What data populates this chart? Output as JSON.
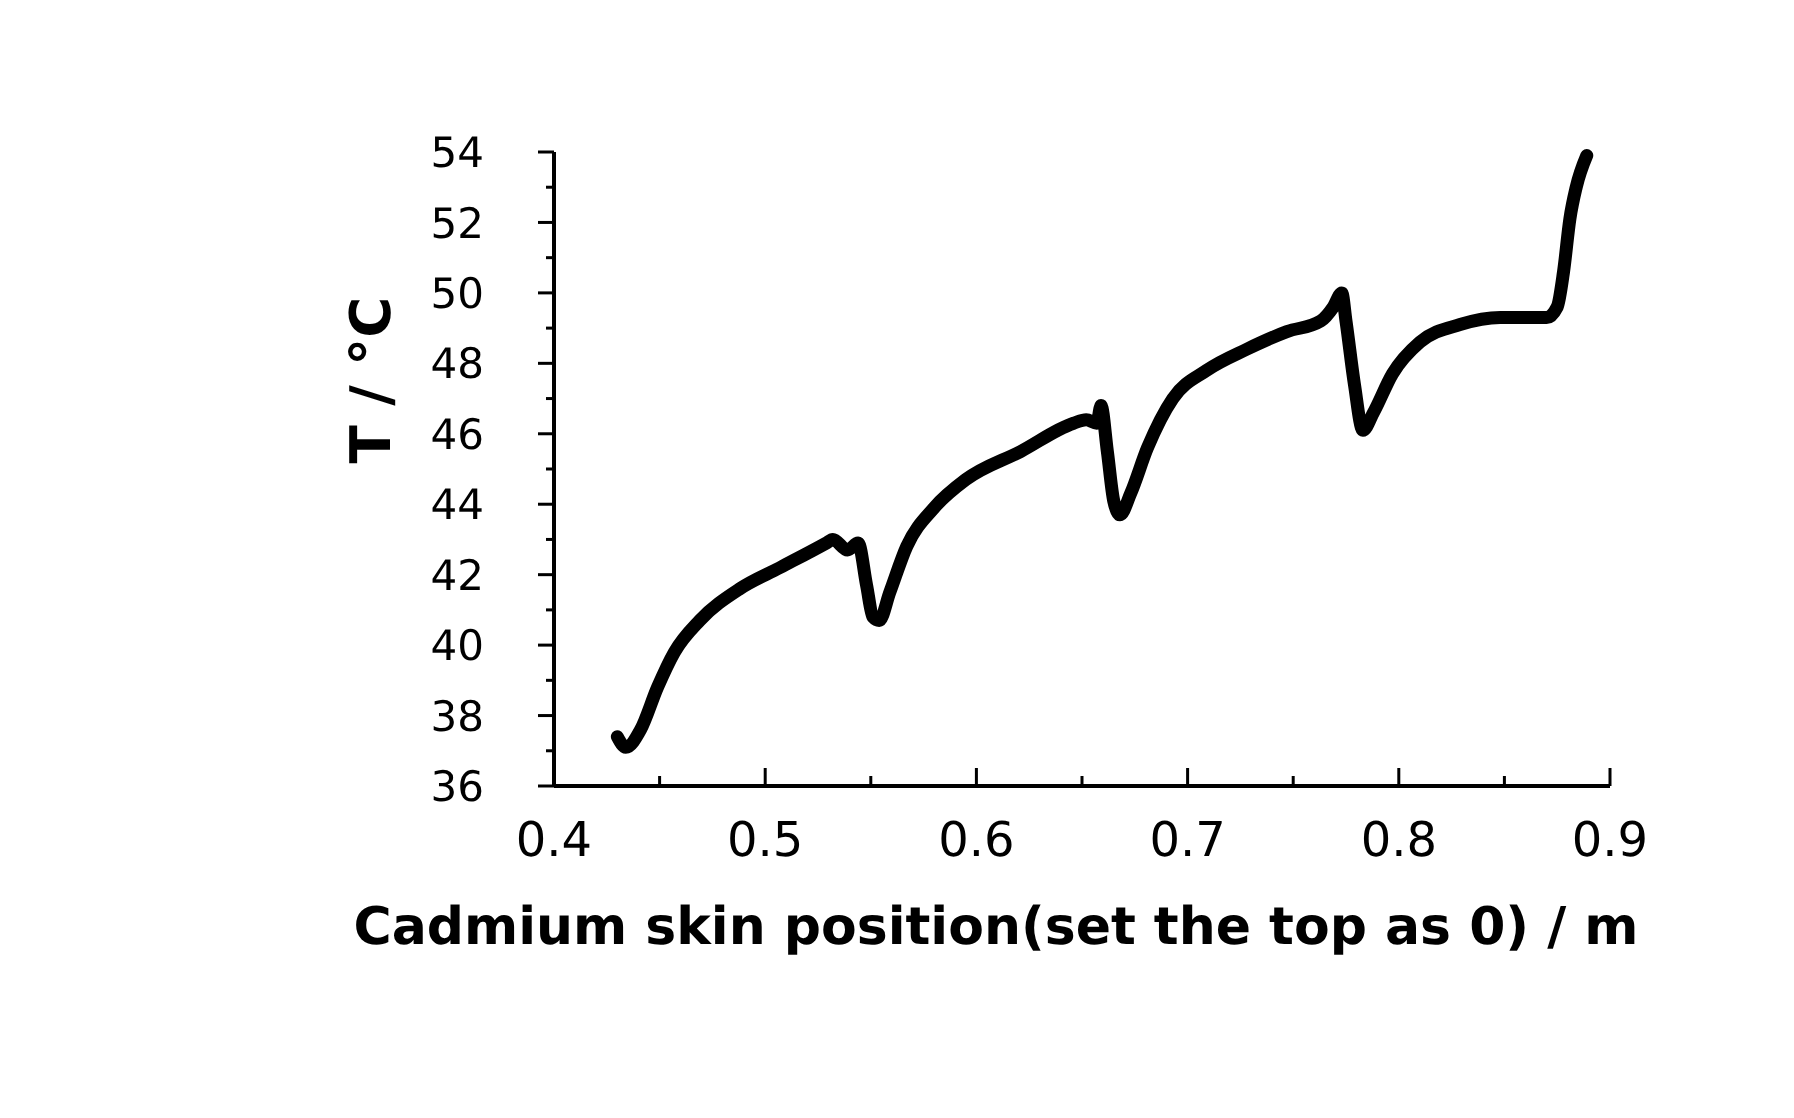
{
  "chart_data": {
    "type": "line",
    "xlabel": "Cadmium skin position(set the top as 0) / m",
    "ylabel": "T / °C",
    "xlim": [
      0.4,
      0.9
    ],
    "ylim": [
      36,
      54
    ],
    "xticks": [
      0.4,
      {
        "value": 0.45,
        "label": null
      },
      0.5,
      {
        "value": 0.55,
        "label": null
      },
      0.6,
      {
        "value": 0.65,
        "label": null
      },
      0.7,
      {
        "value": 0.75,
        "label": null
      },
      0.8,
      {
        "value": 0.85,
        "label": null
      },
      0.9
    ],
    "yticks": [
      36,
      {
        "value": 37,
        "label": null
      },
      38,
      {
        "value": 39,
        "label": null
      },
      40,
      {
        "value": 41,
        "label": null
      },
      42,
      {
        "value": 43,
        "label": null
      },
      44,
      {
        "value": 45,
        "label": null
      },
      46,
      {
        "value": 47,
        "label": null
      },
      48,
      {
        "value": 49,
        "label": null
      },
      50,
      {
        "value": 51,
        "label": null
      },
      52,
      {
        "value": 53,
        "label": null
      },
      54
    ],
    "color": "#000000",
    "x": [
      0.43,
      0.434,
      0.441,
      0.449,
      0.457,
      0.469,
      0.488,
      0.507,
      0.529,
      0.532,
      0.539,
      0.544,
      0.548,
      0.551,
      0.554,
      0.559,
      0.567,
      0.58,
      0.595,
      0.621,
      0.646,
      0.652,
      0.657,
      0.659,
      0.662,
      0.665,
      0.668,
      0.673,
      0.681,
      0.693,
      0.709,
      0.728,
      0.747,
      0.763,
      0.769,
      0.773,
      0.775,
      0.779,
      0.783,
      0.788,
      0.797,
      0.81,
      0.829,
      0.848,
      0.87,
      0.875,
      0.878,
      0.881,
      0.884,
      0.889
    ],
    "values": [
      37.4,
      37.1,
      37.6,
      38.8,
      39.8,
      40.7,
      41.6,
      42.2,
      42.9,
      43.0,
      42.7,
      42.9,
      41.7,
      40.8,
      40.7,
      41.5,
      42.8,
      43.9,
      44.7,
      45.5,
      46.3,
      46.4,
      46.3,
      46.8,
      45.5,
      44.1,
      43.7,
      44.3,
      45.6,
      47.0,
      47.8,
      48.4,
      48.9,
      49.2,
      49.6,
      50.0,
      49.2,
      47.4,
      46.1,
      46.6,
      47.7,
      48.6,
      49.1,
      49.3,
      49.3,
      49.6,
      50.6,
      52.1,
      53.0,
      53.9
    ]
  }
}
